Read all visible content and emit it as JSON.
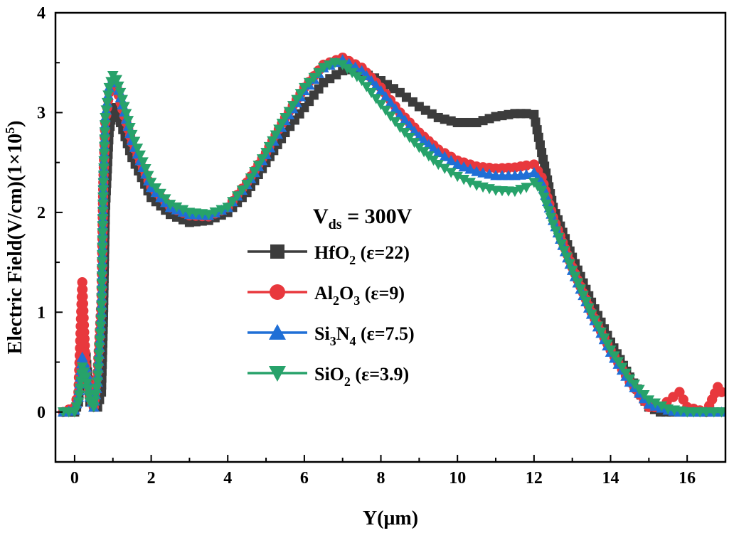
{
  "chart_data": {
    "type": "line",
    "xlabel": "Y(μm)",
    "ylabel": "Electric Field(V/cm)(1×10",
    "ylabel_sup": "5",
    "ylabel_end": ")",
    "xlim": [
      -0.5,
      17
    ],
    "ylim": [
      -0.5,
      4
    ],
    "xticks": [
      "0",
      "2",
      "4",
      "6",
      "8",
      "10",
      "12",
      "14",
      "16"
    ],
    "yticks": [
      "0",
      "1",
      "2",
      "3",
      "4"
    ],
    "legend_title": {
      "main": "V",
      "sub": "ds",
      "rest": " = 300V"
    },
    "legend_placement": "center",
    "series": [
      {
        "name": "HfO₂ (ε=22)",
        "name_parts": {
          "main": "HfO",
          "sub1": "2",
          "mid": "",
          "sub2": "",
          "rest": " (ε=22)"
        },
        "color": "#3c3c3c",
        "marker": "square",
        "x": [
          -0.3,
          0,
          0.1,
          0.2,
          0.3,
          0.4,
          0.5,
          0.6,
          0.7,
          0.75,
          0.8,
          0.9,
          1.0,
          1.1,
          1.2,
          1.5,
          2.0,
          2.5,
          3.0,
          3.5,
          4.0,
          4.5,
          5.0,
          5.5,
          6.0,
          6.5,
          7.0,
          7.2,
          7.5,
          8.0,
          8.5,
          9.0,
          9.5,
          10.0,
          10.5,
          11.0,
          11.5,
          11.8,
          12.0,
          12.2,
          12.5,
          13.0,
          13.5,
          14.0,
          14.5,
          15.0,
          15.3,
          15.6,
          16.0,
          16.5,
          16.9
        ],
        "y": [
          0.0,
          0.0,
          0.1,
          0.65,
          0.55,
          0.1,
          0.05,
          0.05,
          0.2,
          0.9,
          2.0,
          2.8,
          3.05,
          3.0,
          2.9,
          2.55,
          2.15,
          1.98,
          1.9,
          1.92,
          2.0,
          2.2,
          2.5,
          2.8,
          3.05,
          3.3,
          3.42,
          3.43,
          3.4,
          3.32,
          3.2,
          3.06,
          2.95,
          2.9,
          2.9,
          2.96,
          2.99,
          2.99,
          2.98,
          2.6,
          2.05,
          1.55,
          1.1,
          0.7,
          0.35,
          0.05,
          0.0,
          0.0,
          0.0,
          0.0,
          0.0
        ]
      },
      {
        "name": "Al₂O₃ (ε=9)",
        "name_parts": {
          "main": "Al",
          "sub1": "2",
          "mid": "O",
          "sub2": "3",
          "rest": " (ε=9)"
        },
        "color": "#e8383d",
        "marker": "circle",
        "x": [
          -0.3,
          0,
          0.1,
          0.2,
          0.25,
          0.3,
          0.4,
          0.5,
          0.6,
          0.7,
          0.75,
          0.8,
          0.9,
          1.0,
          1.1,
          1.2,
          1.5,
          2.0,
          2.5,
          3.0,
          3.5,
          4.0,
          4.5,
          5.0,
          5.5,
          6.0,
          6.5,
          7.0,
          7.5,
          8.0,
          8.5,
          9.0,
          9.5,
          10.0,
          10.5,
          11.0,
          11.5,
          11.8,
          12.0,
          12.2,
          12.5,
          13.0,
          13.5,
          14.0,
          14.5,
          15.0,
          15.3,
          15.8,
          16.0,
          16.5,
          16.8,
          16.9
        ],
        "y": [
          0.0,
          0.05,
          0.2,
          1.3,
          0.8,
          0.4,
          0.15,
          0.05,
          0.4,
          1.1,
          2.3,
          2.9,
          3.2,
          3.3,
          3.25,
          3.1,
          2.7,
          2.25,
          2.05,
          1.97,
          1.96,
          2.05,
          2.3,
          2.6,
          2.95,
          3.25,
          3.48,
          3.55,
          3.45,
          3.25,
          3.0,
          2.8,
          2.63,
          2.52,
          2.46,
          2.44,
          2.45,
          2.47,
          2.48,
          2.35,
          1.95,
          1.45,
          1.0,
          0.62,
          0.3,
          0.05,
          0.05,
          0.2,
          0.05,
          0.0,
          0.25,
          0.2
        ]
      },
      {
        "name": "Si₃N₄ (ε=7.5)",
        "name_parts": {
          "main": "Si",
          "sub1": "3",
          "mid": "N",
          "sub2": "4",
          "rest": " (ε=7.5)"
        },
        "color": "#1f6fd6",
        "marker": "triangle-up",
        "x": [
          -0.3,
          0,
          0.1,
          0.2,
          0.3,
          0.4,
          0.5,
          0.6,
          0.7,
          0.75,
          0.8,
          0.9,
          1.0,
          1.1,
          1.2,
          1.5,
          2.0,
          2.5,
          3.0,
          3.5,
          4.0,
          4.5,
          5.0,
          5.5,
          6.0,
          6.5,
          7.0,
          7.5,
          8.0,
          8.5,
          9.0,
          9.5,
          10.0,
          10.5,
          11.0,
          11.5,
          11.8,
          12.0,
          12.2,
          12.5,
          13.0,
          13.5,
          14.0,
          14.5,
          15.0,
          15.5,
          15.8,
          16.0,
          16.5,
          16.9
        ],
        "y": [
          0.0,
          0.02,
          0.15,
          0.55,
          0.45,
          0.15,
          0.05,
          0.3,
          1.0,
          2.3,
          2.95,
          3.25,
          3.35,
          3.3,
          3.15,
          2.72,
          2.25,
          2.05,
          1.98,
          1.97,
          2.05,
          2.28,
          2.58,
          2.92,
          3.22,
          3.45,
          3.53,
          3.42,
          3.22,
          2.98,
          2.76,
          2.6,
          2.48,
          2.41,
          2.37,
          2.37,
          2.38,
          2.4,
          2.3,
          1.92,
          1.42,
          0.98,
          0.6,
          0.3,
          0.08,
          0.02,
          0.0,
          0.0,
          0.0,
          0.0
        ]
      },
      {
        "name": "SiO₂ (ε=3.9)",
        "name_parts": {
          "main": "SiO",
          "sub1": "2",
          "mid": "",
          "sub2": "",
          "rest": " (ε=3.9)"
        },
        "color": "#27a26a",
        "marker": "triangle-down",
        "x": [
          -0.3,
          0,
          0.1,
          0.2,
          0.3,
          0.4,
          0.5,
          0.6,
          0.7,
          0.75,
          0.8,
          0.9,
          1.0,
          1.1,
          1.2,
          1.5,
          2.0,
          2.5,
          3.0,
          3.5,
          4.0,
          4.5,
          5.0,
          5.5,
          6.0,
          6.5,
          6.8,
          7.0,
          7.5,
          8.0,
          8.5,
          9.0,
          9.5,
          10.0,
          10.5,
          11.0,
          11.5,
          11.8,
          12.0,
          12.2,
          12.5,
          13.0,
          13.5,
          14.0,
          14.5,
          15.0,
          15.5,
          16.0,
          16.5,
          16.9
        ],
        "y": [
          0.0,
          0.0,
          0.1,
          0.45,
          0.35,
          0.1,
          0.05,
          0.3,
          1.0,
          2.3,
          2.95,
          3.25,
          3.37,
          3.33,
          3.2,
          2.78,
          2.3,
          2.08,
          2.0,
          1.98,
          2.05,
          2.28,
          2.6,
          2.95,
          3.25,
          3.45,
          3.5,
          3.48,
          3.32,
          3.08,
          2.85,
          2.65,
          2.48,
          2.36,
          2.27,
          2.22,
          2.21,
          2.25,
          2.3,
          2.22,
          1.88,
          1.42,
          0.98,
          0.62,
          0.33,
          0.12,
          0.03,
          0.0,
          0.0,
          0.0
        ]
      }
    ]
  }
}
